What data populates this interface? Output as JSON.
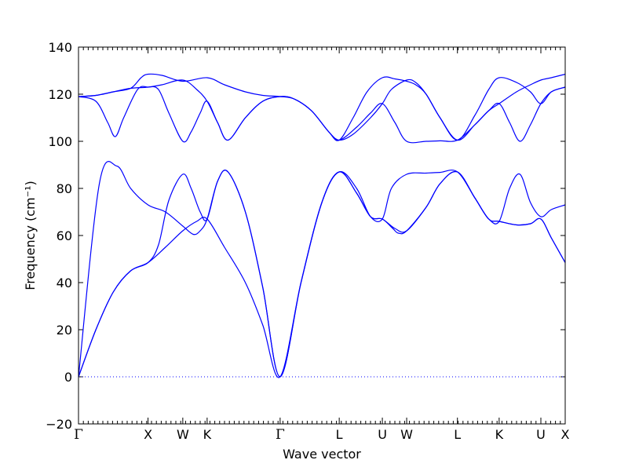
{
  "chart_data": {
    "type": "line",
    "title": "",
    "xlabel": "Wave vector",
    "ylabel": "Frequency (cm⁻¹)",
    "ylim": [
      -20,
      140
    ],
    "yticks": [
      -20,
      0,
      20,
      40,
      60,
      80,
      100,
      120,
      140
    ],
    "line_color": "#0000ff",
    "zero_line": {
      "y": 0,
      "style": "dotted",
      "color": "#0000ff"
    },
    "high_symmetry_points": [
      {
        "label": "Γ",
        "x": 0.0
      },
      {
        "label": "X",
        "x": 1.0
      },
      {
        "label": "W",
        "x": 1.5
      },
      {
        "label": "K",
        "x": 1.85
      },
      {
        "label": "Γ",
        "x": 2.9
      },
      {
        "label": "L",
        "x": 3.75
      },
      {
        "label": "U",
        "x": 4.37
      },
      {
        "label": "W",
        "x": 4.72
      },
      {
        "label": "L",
        "x": 5.45
      },
      {
        "label": "K",
        "x": 6.05
      },
      {
        "label": "U",
        "x": 6.65
      },
      {
        "label": "X",
        "x": 7.0
      }
    ],
    "xlim": [
      0,
      7.0
    ],
    "series": [
      {
        "values": [
          [
            0,
            0
          ],
          [
            0.25,
            20
          ],
          [
            0.5,
            36
          ],
          [
            0.75,
            45
          ],
          [
            1.0,
            48.5
          ],
          [
            1.25,
            55
          ],
          [
            1.5,
            62
          ],
          [
            1.7,
            66
          ],
          [
            1.85,
            67
          ],
          [
            2.1,
            55
          ],
          [
            2.4,
            40
          ],
          [
            2.65,
            22
          ],
          [
            2.9,
            0
          ],
          [
            3.2,
            40
          ],
          [
            3.5,
            74
          ],
          [
            3.75,
            87
          ],
          [
            4.0,
            78
          ],
          [
            4.2,
            68
          ],
          [
            4.37,
            67
          ],
          [
            4.55,
            63
          ],
          [
            4.72,
            62
          ],
          [
            5.0,
            72
          ],
          [
            5.2,
            82
          ],
          [
            5.45,
            87
          ],
          [
            5.7,
            76
          ],
          [
            5.9,
            67
          ],
          [
            6.05,
            66
          ],
          [
            6.3,
            64.5
          ],
          [
            6.5,
            65
          ],
          [
            6.65,
            67
          ],
          [
            6.8,
            59
          ],
          [
            7.0,
            48.5
          ]
        ]
      },
      {
        "values": [
          [
            0,
            0
          ],
          [
            0.25,
            20
          ],
          [
            0.5,
            36
          ],
          [
            0.75,
            45
          ],
          [
            1.0,
            48.5
          ],
          [
            1.15,
            56
          ],
          [
            1.3,
            75
          ],
          [
            1.5,
            86
          ],
          [
            1.62,
            80
          ],
          [
            1.75,
            70
          ],
          [
            1.85,
            67
          ],
          [
            2.0,
            83
          ],
          [
            2.15,
            87
          ],
          [
            2.4,
            70
          ],
          [
            2.65,
            38
          ],
          [
            2.9,
            0
          ],
          [
            3.2,
            40
          ],
          [
            3.5,
            74
          ],
          [
            3.75,
            87
          ],
          [
            4.0,
            78
          ],
          [
            4.2,
            68
          ],
          [
            4.37,
            67
          ],
          [
            4.52,
            63
          ],
          [
            4.6,
            61
          ],
          [
            4.72,
            62
          ],
          [
            5.0,
            72
          ],
          [
            5.2,
            82
          ],
          [
            5.45,
            87
          ],
          [
            5.7,
            76
          ],
          [
            5.9,
            67
          ],
          [
            6.05,
            66
          ],
          [
            6.3,
            64.5
          ],
          [
            6.5,
            65
          ],
          [
            6.65,
            67
          ],
          [
            6.8,
            59
          ],
          [
            7.0,
            48.5
          ]
        ]
      },
      {
        "values": [
          [
            0,
            0
          ],
          [
            0.3,
            82
          ],
          [
            0.55,
            89.5
          ],
          [
            0.75,
            80
          ],
          [
            1.0,
            73
          ],
          [
            1.25,
            70
          ],
          [
            1.5,
            64
          ],
          [
            1.65,
            60.5
          ],
          [
            1.75,
            62
          ],
          [
            1.85,
            67
          ],
          [
            2.0,
            83
          ],
          [
            2.15,
            87
          ],
          [
            2.4,
            70
          ],
          [
            2.65,
            38
          ],
          [
            2.9,
            0
          ],
          [
            3.2,
            40
          ],
          [
            3.5,
            74
          ],
          [
            3.75,
            87
          ],
          [
            4.0,
            80
          ],
          [
            4.2,
            68
          ],
          [
            4.37,
            67
          ],
          [
            4.5,
            80
          ],
          [
            4.72,
            86
          ],
          [
            5.0,
            86.5
          ],
          [
            5.2,
            86.8
          ],
          [
            5.45,
            87
          ],
          [
            5.7,
            76
          ],
          [
            5.9,
            67
          ],
          [
            6.05,
            66
          ],
          [
            6.2,
            80
          ],
          [
            6.35,
            86
          ],
          [
            6.5,
            74
          ],
          [
            6.65,
            68
          ],
          [
            6.8,
            71
          ],
          [
            7.0,
            73
          ]
        ]
      },
      {
        "values": [
          [
            0,
            119
          ],
          [
            0.25,
            117
          ],
          [
            0.42,
            108
          ],
          [
            0.53,
            102
          ],
          [
            0.65,
            110
          ],
          [
            0.85,
            122
          ],
          [
            1.0,
            123
          ],
          [
            1.15,
            122
          ],
          [
            1.3,
            112
          ],
          [
            1.5,
            100
          ],
          [
            1.62,
            104
          ],
          [
            1.75,
            112
          ],
          [
            1.85,
            117
          ],
          [
            2.0,
            108
          ],
          [
            2.15,
            100.5
          ],
          [
            2.4,
            110
          ],
          [
            2.65,
            117
          ],
          [
            2.9,
            119
          ],
          [
            3.1,
            118
          ],
          [
            3.35,
            113
          ],
          [
            3.6,
            104
          ],
          [
            3.75,
            100.5
          ],
          [
            4.0,
            106
          ],
          [
            4.2,
            112
          ],
          [
            4.37,
            116
          ],
          [
            4.55,
            108
          ],
          [
            4.72,
            100
          ],
          [
            5.0,
            100
          ],
          [
            5.2,
            100.2
          ],
          [
            5.45,
            100.5
          ],
          [
            5.7,
            107
          ],
          [
            5.9,
            113
          ],
          [
            6.05,
            116
          ],
          [
            6.2,
            108
          ],
          [
            6.35,
            100
          ],
          [
            6.5,
            107
          ],
          [
            6.65,
            116
          ],
          [
            6.8,
            121
          ],
          [
            7.0,
            123
          ]
        ]
      },
      {
        "values": [
          [
            0,
            119
          ],
          [
            0.25,
            119.5
          ],
          [
            0.5,
            121
          ],
          [
            0.75,
            122.5
          ],
          [
            1.0,
            123
          ],
          [
            1.2,
            124
          ],
          [
            1.5,
            126
          ],
          [
            1.7,
            122
          ],
          [
            1.85,
            117
          ],
          [
            2.0,
            108
          ],
          [
            2.15,
            100.5
          ],
          [
            2.4,
            110
          ],
          [
            2.65,
            117
          ],
          [
            2.9,
            119
          ],
          [
            3.1,
            118
          ],
          [
            3.35,
            113
          ],
          [
            3.6,
            104
          ],
          [
            3.75,
            100.5
          ],
          [
            3.95,
            103
          ],
          [
            4.2,
            110
          ],
          [
            4.37,
            116
          ],
          [
            4.5,
            122
          ],
          [
            4.72,
            126
          ],
          [
            4.85,
            125
          ],
          [
            5.0,
            120
          ],
          [
            5.2,
            110
          ],
          [
            5.45,
            100.5
          ],
          [
            5.7,
            107
          ],
          [
            5.9,
            113
          ],
          [
            6.05,
            116
          ],
          [
            6.3,
            121
          ],
          [
            6.5,
            124
          ],
          [
            6.65,
            126
          ],
          [
            6.8,
            127
          ],
          [
            7.0,
            128.5
          ]
        ]
      },
      {
        "values": [
          [
            0,
            119
          ],
          [
            0.25,
            119.5
          ],
          [
            0.5,
            121
          ],
          [
            0.75,
            122.5
          ],
          [
            0.9,
            127
          ],
          [
            1.0,
            128.5
          ],
          [
            1.2,
            128
          ],
          [
            1.5,
            125.5
          ],
          [
            1.85,
            127
          ],
          [
            2.1,
            124
          ],
          [
            2.4,
            121
          ],
          [
            2.65,
            119.5
          ],
          [
            2.9,
            119
          ],
          [
            3.1,
            118
          ],
          [
            3.35,
            113
          ],
          [
            3.6,
            104
          ],
          [
            3.75,
            100.5
          ],
          [
            3.95,
            110
          ],
          [
            4.15,
            121
          ],
          [
            4.37,
            127
          ],
          [
            4.55,
            126.5
          ],
          [
            4.72,
            125.5
          ],
          [
            4.85,
            124
          ],
          [
            5.0,
            120
          ],
          [
            5.2,
            110
          ],
          [
            5.45,
            100.5
          ],
          [
            5.7,
            111
          ],
          [
            5.9,
            122
          ],
          [
            6.05,
            127
          ],
          [
            6.3,
            125
          ],
          [
            6.5,
            121
          ],
          [
            6.65,
            116
          ],
          [
            6.8,
            121
          ],
          [
            7.0,
            123
          ]
        ]
      }
    ]
  }
}
